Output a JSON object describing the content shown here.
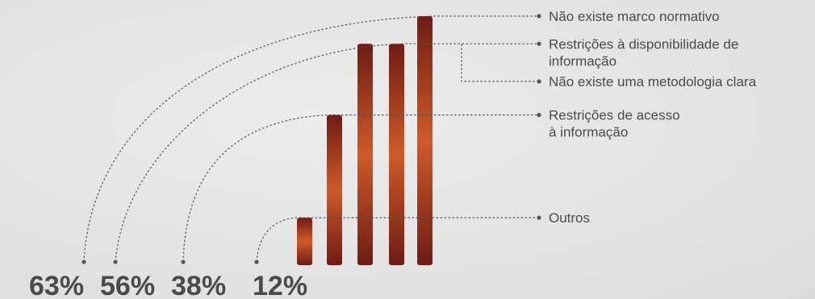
{
  "chart_data": {
    "type": "bar",
    "categories": [
      "Outros",
      "Restrições de acesso à informação",
      "Não existe uma metodologia clara",
      "Restrições à disponibilidade de informação",
      "Não existe marco normativo"
    ],
    "values": [
      12,
      38,
      56,
      56,
      63
    ],
    "percent_labels": [
      "63%",
      "56%",
      "38%",
      "12%"
    ],
    "legend_labels": [
      [
        "Não existe marco normativo"
      ],
      [
        "Restrições à disponibilidade de",
        "informação"
      ],
      [
        "Não existe uma metodologia clara"
      ],
      [
        "Restrições de acesso",
        "à informação"
      ],
      [
        "Outros"
      ]
    ],
    "title": "",
    "xlabel": "",
    "ylabel": "",
    "ylim": [
      0,
      63
    ],
    "grid": false,
    "colors": {
      "bar_edge": "#6e1b14",
      "bar_mid": "#cf5a28",
      "text": "#4a4a4a",
      "leader": "#555555"
    }
  }
}
